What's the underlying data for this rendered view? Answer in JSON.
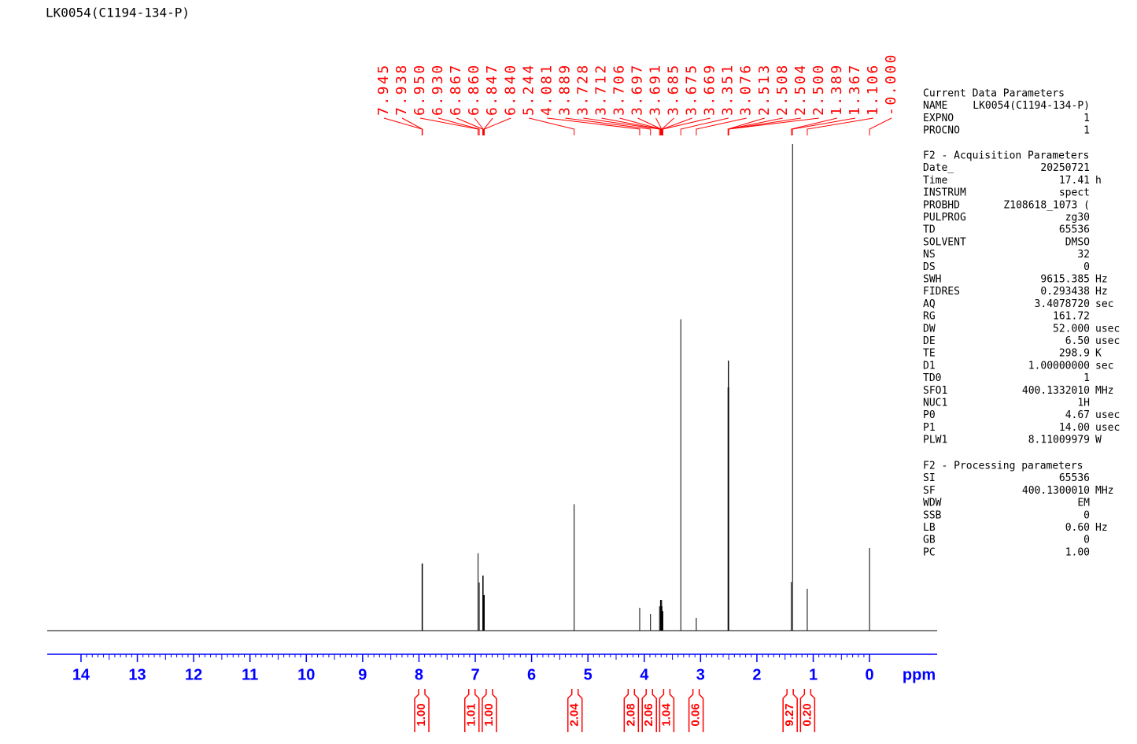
{
  "chart_data": {
    "type": "stick",
    "title": "LK0054(C1194-134-P)",
    "x_label": "ppm",
    "color": "#000000",
    "label_color": "#ff0000",
    "axis_color": "#0000ff",
    "x": [
      {
        "value": 7.945,
        "label": "7.945"
      },
      {
        "value": 7.938,
        "label": "7.938"
      },
      {
        "value": 6.95,
        "label": "6.950"
      },
      {
        "value": 6.93,
        "label": "6.930"
      },
      {
        "value": 6.867,
        "label": "6.867"
      },
      {
        "value": 6.86,
        "label": "6.860"
      },
      {
        "value": 6.847,
        "label": "6.847"
      },
      {
        "value": 6.84,
        "label": "6.840"
      },
      {
        "value": 5.244,
        "label": "5.244"
      },
      {
        "value": 4.081,
        "label": "4.081"
      },
      {
        "value": 3.889,
        "label": "3.889"
      },
      {
        "value": 3.728,
        "label": "3.728"
      },
      {
        "value": 3.712,
        "label": "3.712"
      },
      {
        "value": 3.706,
        "label": "3.706"
      },
      {
        "value": 3.697,
        "label": "3.697"
      },
      {
        "value": 3.691,
        "label": "3.691"
      },
      {
        "value": 3.685,
        "label": "3.685"
      },
      {
        "value": 3.675,
        "label": "3.675"
      },
      {
        "value": 3.669,
        "label": "3.669"
      },
      {
        "value": 3.351,
        "label": "3.351"
      },
      {
        "value": 3.076,
        "label": "3.076"
      },
      {
        "value": 2.513,
        "label": "2.513"
      },
      {
        "value": 2.508,
        "label": "2.508"
      },
      {
        "value": 2.504,
        "label": "2.504"
      },
      {
        "value": 2.5,
        "label": "2.500"
      },
      {
        "value": 1.389,
        "label": "1.389"
      },
      {
        "value": 1.367,
        "label": "1.367"
      },
      {
        "value": 1.106,
        "label": "1.106"
      },
      {
        "value": 0,
        "label": "-0.000"
      }
    ],
    "values": [
      13.8,
      13.8,
      15.9,
      9.9,
      11.3,
      11.3,
      7.3,
      7.3,
      26,
      4.7,
      3.4,
      5,
      6.3,
      6.3,
      5,
      6.3,
      5,
      4,
      4,
      64,
      2.6,
      50,
      55.5,
      55.5,
      50,
      10,
      100,
      8.6,
      17
    ],
    "xlim": [
      14.6,
      -1.2
    ],
    "ylim": [
      0,
      100
    ],
    "xticks": [
      14,
      13,
      12,
      11,
      10,
      9,
      8,
      7,
      6,
      5,
      4,
      3,
      2,
      1,
      0
    ],
    "integrals": {
      "x": [
        7.95,
        7.06,
        6.75,
        5.23,
        4.23,
        3.91,
        3.6,
        3.08,
        1.41,
        1.1
      ],
      "values": [
        1,
        1.01,
        1,
        2.04,
        2.08,
        2.06,
        1.04,
        0.06,
        9.27,
        0.2
      ],
      "value_labels": [
        "1.00",
        "1.01",
        "1.00",
        "2.04",
        "2.08",
        "2.06",
        "1.04",
        "0.06",
        "9.27",
        "0.20"
      ]
    }
  },
  "parameters": {
    "sections": [
      {
        "title": "Current Data Parameters",
        "rows": [
          [
            "NAME",
            "LK0054(C1194-134-P)"
          ],
          [
            "EXPNO",
            "1"
          ],
          [
            "PROCNO",
            "1"
          ]
        ]
      },
      {
        "title": "F2 - Acquisition Parameters",
        "rows": [
          [
            "Date_",
            "20250721"
          ],
          [
            "Time",
            "17.41",
            "h"
          ],
          [
            "INSTRUM",
            "spect"
          ],
          [
            "PROBHD",
            "Z108618_1073 ("
          ],
          [
            "PULPROG",
            "zg30"
          ],
          [
            "TD",
            "65536"
          ],
          [
            "SOLVENT",
            "DMSO"
          ],
          [
            "NS",
            "32"
          ],
          [
            "DS",
            "0"
          ],
          [
            "SWH",
            "9615.385",
            "Hz"
          ],
          [
            "FIDRES",
            "0.293438",
            "Hz"
          ],
          [
            "AQ",
            "3.4078720",
            "sec"
          ],
          [
            "RG",
            "161.72"
          ],
          [
            "DW",
            "52.000",
            "usec"
          ],
          [
            "DE",
            "6.50",
            "usec"
          ],
          [
            "TE",
            "298.9",
            "K"
          ],
          [
            "D1",
            "1.00000000",
            "sec"
          ],
          [
            "TD0",
            "1"
          ],
          [
            "SFO1",
            "400.1332010",
            "MHz"
          ],
          [
            "NUC1",
            "1H"
          ],
          [
            "P0",
            "4.67",
            "usec"
          ],
          [
            "P1",
            "14.00",
            "usec"
          ],
          [
            "PLW1",
            "8.11009979",
            "W"
          ]
        ]
      },
      {
        "title": "F2 - Processing parameters",
        "rows": [
          [
            "SI",
            "65536"
          ],
          [
            "SF",
            "400.1300010",
            "MHz"
          ],
          [
            "WDW",
            "EM"
          ],
          [
            "SSB",
            "0"
          ],
          [
            "LB",
            "0.60",
            "Hz"
          ],
          [
            "GB",
            "0"
          ],
          [
            "PC",
            "1.00"
          ]
        ]
      }
    ]
  }
}
